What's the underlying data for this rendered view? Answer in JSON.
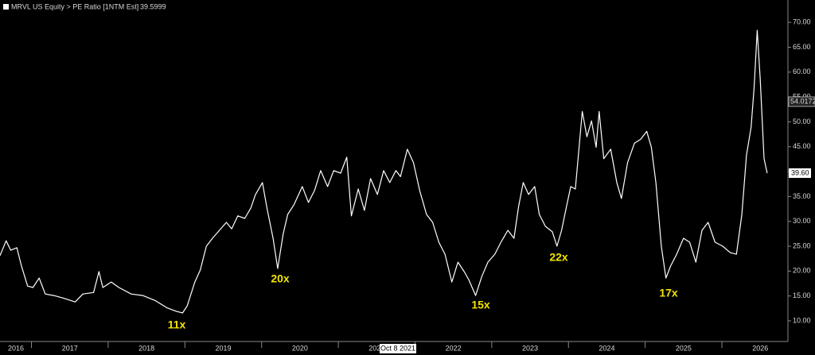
{
  "chart_data": {
    "type": "line",
    "x": [
      2016.59,
      2016.67,
      2016.73,
      2016.81,
      2016.87,
      2016.95,
      2017.02,
      2017.1,
      2017.18,
      2017.29,
      2017.41,
      2017.57,
      2017.67,
      2017.81,
      2017.88,
      2017.93,
      2018.04,
      2018.14,
      2018.3,
      2018.45,
      2018.61,
      2018.77,
      2018.89,
      2018.97,
      2019.03,
      2019.13,
      2019.2,
      2019.28,
      2019.36,
      2019.45,
      2019.54,
      2019.61,
      2019.69,
      2019.78,
      2019.86,
      2019.92,
      2020.01,
      2020.07,
      2020.15,
      2020.21,
      2020.28,
      2020.34,
      2020.42,
      2020.53,
      2020.61,
      2020.69,
      2020.77,
      2020.86,
      2020.94,
      2021.03,
      2021.11,
      2021.17,
      2021.26,
      2021.34,
      2021.42,
      2021.51,
      2021.59,
      2021.67,
      2021.75,
      2021.81,
      2021.9,
      2021.98,
      2022.06,
      2022.15,
      2022.23,
      2022.31,
      2022.39,
      2022.48,
      2022.56,
      2022.64,
      2022.7,
      2022.79,
      2022.87,
      2022.95,
      2023.04,
      2023.12,
      2023.21,
      2023.29,
      2023.35,
      2023.41,
      2023.48,
      2023.56,
      2023.62,
      2023.7,
      2023.79,
      2023.85,
      2023.91,
      2023.97,
      2024.03,
      2024.09,
      2024.18,
      2024.24,
      2024.3,
      2024.36,
      2024.4,
      2024.46,
      2024.55,
      2024.63,
      2024.69,
      2024.77,
      2024.86,
      2024.94,
      2025.02,
      2025.08,
      2025.14,
      2025.21,
      2025.27,
      2025.33,
      2025.41,
      2025.5,
      2025.58,
      2025.66,
      2025.74,
      2025.82,
      2025.91,
      2026.01,
      2026.11,
      2026.19,
      2026.26,
      2026.32,
      2026.38,
      2026.42,
      2026.46,
      2026.5,
      2026.55,
      2026.59
    ],
    "series": [
      {
        "name": "MRVL US Equity > PE Ratio [1NTM Est]",
        "color": "#ffffff",
        "values": [
          23.1,
          26.1,
          24.2,
          24.7,
          21,
          17,
          16.7,
          18.6,
          15.4,
          15.1,
          14.6,
          13.8,
          15.4,
          15.7,
          19.9,
          16.7,
          17.8,
          16.7,
          15.4,
          15.1,
          14.1,
          12.6,
          11.9,
          11.6,
          13,
          17.8,
          20.2,
          25,
          26.6,
          28.2,
          29.8,
          28.5,
          31.1,
          30.6,
          32.7,
          35.4,
          37.8,
          32.7,
          26.6,
          20.5,
          27.4,
          31.4,
          33.3,
          37,
          33.8,
          36.2,
          40.2,
          37,
          40.2,
          39.7,
          42.9,
          31.1,
          36.5,
          32.2,
          38.6,
          35.4,
          40.2,
          37.8,
          40.2,
          39,
          44.5,
          41.8,
          36.2,
          31.4,
          29.8,
          25.8,
          23.4,
          17.8,
          21.8,
          19.9,
          18.3,
          15.1,
          18.9,
          21.8,
          23.4,
          25.8,
          28.2,
          26.6,
          33,
          37.8,
          35.4,
          37,
          31.4,
          29,
          27.9,
          25,
          28.2,
          32.7,
          37,
          36.5,
          52.1,
          47,
          50.2,
          44.9,
          52.1,
          42.6,
          44.5,
          37.8,
          34.6,
          41.8,
          45.7,
          46.5,
          48.1,
          44.9,
          37.8,
          25,
          18.6,
          21,
          23.4,
          26.6,
          25.8,
          21.8,
          28.2,
          29.8,
          25.8,
          25,
          23.7,
          23.4,
          31.4,
          43.3,
          48.9,
          56.9,
          68.4,
          58.5,
          42.6,
          39.7
        ]
      }
    ],
    "legend_value": "39.5999",
    "last_value_label": "39.60",
    "crosshair_value_label": "54.0172",
    "crosshair_date_label": "Oct 8 2021",
    "annotations": [
      "11x",
      "20x",
      "15x",
      "22x",
      "17x"
    ],
    "xlim": [
      2016.59,
      2026.84
    ],
    "xticks": [
      {
        "value": 2016,
        "label": "2016"
      },
      {
        "value": 2017,
        "label": "2017"
      },
      {
        "value": 2018,
        "label": "2018"
      },
      {
        "value": 2019,
        "label": "2019"
      },
      {
        "value": 2020,
        "label": "2020"
      },
      {
        "value": 2021,
        "label": "2021"
      },
      {
        "value": 2022,
        "label": "2022"
      },
      {
        "value": 2023,
        "label": "2023"
      },
      {
        "value": 2024,
        "label": "2024"
      },
      {
        "value": 2025,
        "label": "2025"
      },
      {
        "value": 2026,
        "label": "2026"
      }
    ],
    "ylim": [
      5.85,
      73.7
    ],
    "yticks": [
      {
        "value": 10,
        "label": "10.00"
      },
      {
        "value": 15,
        "label": "15.00"
      },
      {
        "value": 20,
        "label": "20.00"
      },
      {
        "value": 25,
        "label": "25.00"
      },
      {
        "value": 30,
        "label": "30.00"
      },
      {
        "value": 35,
        "label": "35.00"
      },
      {
        "value": 40,
        "label": "40.00"
      },
      {
        "value": 45,
        "label": "45.00"
      },
      {
        "value": 50,
        "label": "50.00"
      },
      {
        "value": 55,
        "label": "55.00"
      },
      {
        "value": 60,
        "label": "60.00"
      },
      {
        "value": 65,
        "label": "65.00"
      },
      {
        "value": 70,
        "label": "70.00"
      }
    ]
  }
}
